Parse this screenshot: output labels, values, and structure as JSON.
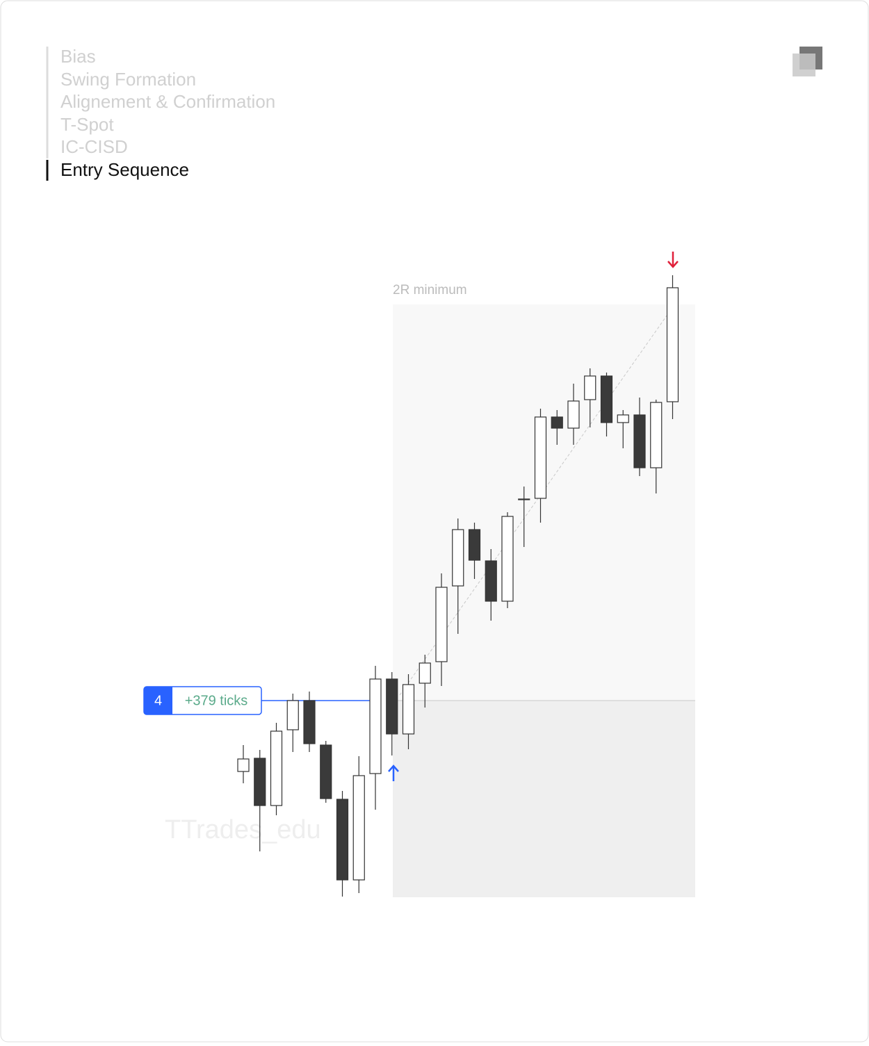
{
  "nav": {
    "items": [
      "Bias",
      "Swing Formation",
      "Alignement & Confirmation",
      "T-Spot",
      "IC-CISD",
      "Entry Sequence"
    ]
  },
  "chart_data": {
    "type": "candlestick",
    "annotation": "2R minimum",
    "trade_number": 4,
    "trade_result": "+379 ticks",
    "watermark": "TTrades_edu",
    "ylim": [
      0,
      1000
    ],
    "up_color": "#ffffff",
    "down_color": "#3a3a3a",
    "open": [
      190,
      209,
      141,
      250,
      292,
      228,
      150,
      34,
      187,
      323,
      244,
      317,
      348,
      457,
      538,
      493,
      435,
      582,
      583,
      700,
      684,
      725,
      759,
      692,
      703,
      627,
      722
    ],
    "high": [
      228,
      221,
      260,
      302,
      305,
      234,
      162,
      212,
      342,
      333,
      330,
      358,
      475,
      554,
      548,
      510,
      563,
      600,
      712,
      710,
      748,
      770,
      764,
      710,
      728,
      725,
      904
    ],
    "low": [
      173,
      75,
      127,
      218,
      218,
      145,
      10,
      15,
      135,
      213,
      222,
      282,
      313,
      388,
      467,
      407,
      425,
      513,
      548,
      660,
      660,
      685,
      672,
      655,
      615,
      590,
      697
    ],
    "close": [
      208,
      141,
      248,
      292,
      230,
      151,
      34,
      184,
      323,
      244,
      315,
      346,
      455,
      538,
      494,
      435,
      557,
      582,
      700,
      684,
      723,
      759,
      692,
      703,
      627,
      721,
      886
    ]
  }
}
